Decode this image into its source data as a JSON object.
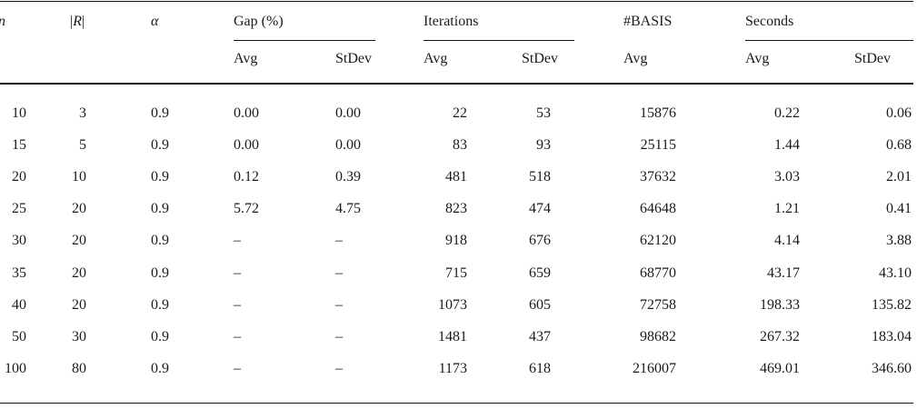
{
  "header": {
    "n": "n",
    "r_bar": "|",
    "r_letter": "R",
    "alpha": "α",
    "gap": "Gap (%)",
    "iterations": "Iterations",
    "basis": "#BASIS",
    "seconds": "Seconds",
    "avg": "Avg",
    "stdev": "StDev"
  },
  "rows": [
    [
      "10",
      "3",
      "0.9",
      "0.00",
      "0.00",
      "22",
      "53",
      "15876",
      "0.22",
      "0.06"
    ],
    [
      "15",
      "5",
      "0.9",
      "0.00",
      "0.00",
      "83",
      "93",
      "25115",
      "1.44",
      "0.68"
    ],
    [
      "20",
      "10",
      "0.9",
      "0.12",
      "0.39",
      "481",
      "518",
      "37632",
      "3.03",
      "2.01"
    ],
    [
      "25",
      "20",
      "0.9",
      "5.72",
      "4.75",
      "823",
      "474",
      "64648",
      "1.21",
      "0.41"
    ],
    [
      "30",
      "20",
      "0.9",
      "–",
      "–",
      "918",
      "676",
      "62120",
      "4.14",
      "3.88"
    ],
    [
      "35",
      "20",
      "0.9",
      "–",
      "–",
      "715",
      "659",
      "68770",
      "43.17",
      "43.10"
    ],
    [
      "40",
      "20",
      "0.9",
      "–",
      "–",
      "1073",
      "605",
      "72758",
      "198.33",
      "135.82"
    ],
    [
      "50",
      "30",
      "0.9",
      "–",
      "–",
      "1481",
      "437",
      "98682",
      "267.32",
      "183.04"
    ],
    [
      "100",
      "80",
      "0.9",
      "–",
      "–",
      "1173",
      "618",
      "216007",
      "469.01",
      "346.60"
    ]
  ]
}
